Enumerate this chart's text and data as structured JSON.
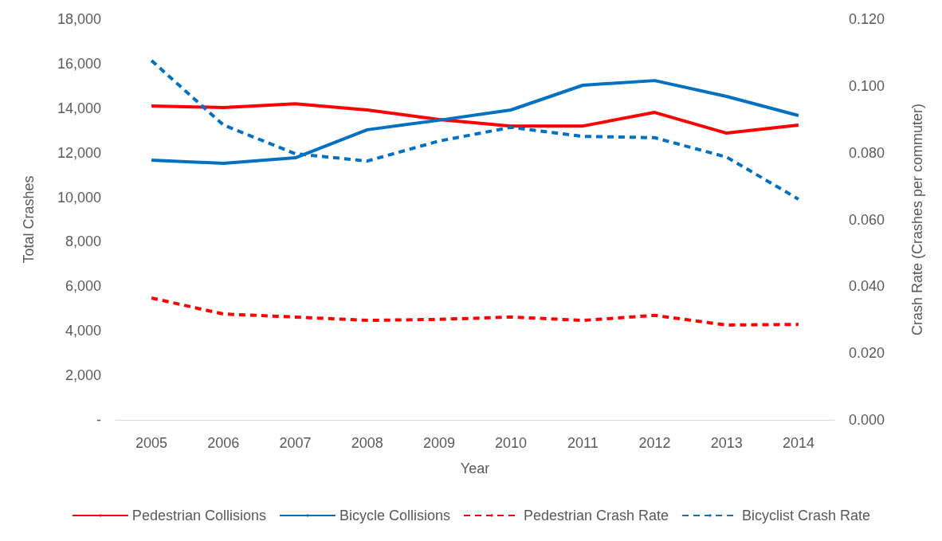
{
  "chart_data": {
    "type": "line",
    "xlabel": "Year",
    "ylabel": "Total Crashes",
    "y2label": "Crash Rate (Crashes per commuter)",
    "categories": [
      "2005",
      "2006",
      "2007",
      "2008",
      "2009",
      "2010",
      "2011",
      "2012",
      "2013",
      "2014"
    ],
    "series": [
      {
        "name": "Pedestrian Collisions",
        "color": "#ff0000",
        "line_style": "solid",
        "values": [
          14100,
          14030,
          14200,
          13920,
          13490,
          13200,
          13200,
          13810,
          12880,
          13240
        ]
      },
      {
        "name": "Bicycle Collisions",
        "color": "#0070c0",
        "line_style": "solid",
        "values": [
          11670,
          11520,
          11770,
          13030,
          13460,
          13920,
          15030,
          15240,
          14530,
          13670
        ]
      },
      {
        "name": "Pedestrian Crash Rate",
        "color": "#ff0000",
        "line_style": "dashed",
        "axis": "y2",
        "values": [
          0.0365,
          0.0317,
          0.0308,
          0.0298,
          0.0301,
          0.0308,
          0.0298,
          0.0313,
          0.0284,
          0.0286
        ]
      },
      {
        "name": "Bicyclist Crash Rate",
        "color": "#0070c0",
        "line_style": "dashed",
        "axis": "y2",
        "values": [
          0.1076,
          0.0883,
          0.0797,
          0.0775,
          0.0835,
          0.0876,
          0.0849,
          0.0845,
          0.0787,
          0.0661
        ]
      }
    ],
    "ylim": [
      0,
      18000
    ],
    "yticks": [
      {
        "value": 0,
        "label": "-"
      },
      {
        "value": 2000,
        "label": "2,000"
      },
      {
        "value": 4000,
        "label": "4,000"
      },
      {
        "value": 6000,
        "label": "6,000"
      },
      {
        "value": 8000,
        "label": "8,000"
      },
      {
        "value": 10000,
        "label": "10,000"
      },
      {
        "value": 12000,
        "label": "12,000"
      },
      {
        "value": 14000,
        "label": "14,000"
      },
      {
        "value": 16000,
        "label": "16,000"
      },
      {
        "value": 18000,
        "label": "18,000"
      }
    ],
    "y2lim": [
      0,
      0.12
    ],
    "y2ticks": [
      {
        "value": 0,
        "label": "0.000"
      },
      {
        "value": 0.02,
        "label": "0.020"
      },
      {
        "value": 0.04,
        "label": "0.040"
      },
      {
        "value": 0.06,
        "label": "0.060"
      },
      {
        "value": 0.08,
        "label": "0.080"
      },
      {
        "value": 0.1,
        "label": "0.100"
      },
      {
        "value": 0.12,
        "label": "0.120"
      }
    ],
    "grid": false,
    "legend": "bottom",
    "marker": "none"
  }
}
